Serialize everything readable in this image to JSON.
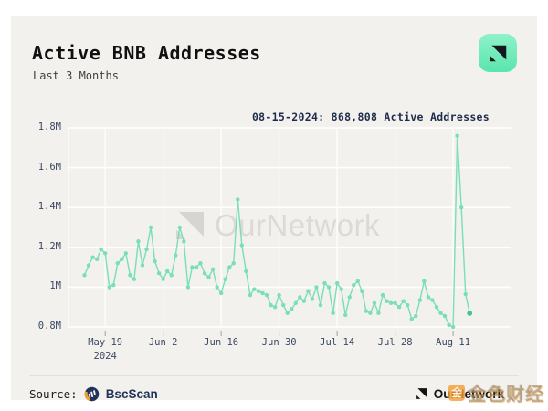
{
  "header": {
    "title": "Active BNB Addresses",
    "subtitle": "Last 3 Months"
  },
  "badge_icon": "ournetwork-logo",
  "watermark_text": "OurNetwork",
  "footer": {
    "source_label": "Source:",
    "source_name": "BscScan",
    "brand": "OurNetwork",
    "overlay_watermark": "金色财经",
    "overlay_icon_glyph": "金"
  },
  "colors": {
    "card_bg": "#f2f1ed",
    "line": "#79dfb5",
    "line_last": "#45c498",
    "grid": "#ffffff",
    "tick": "#9aa1ae",
    "axis_text": "#3c4963",
    "annotation_navy": "#1e2c4c",
    "watermark_gray": "#d9d8d4",
    "badge_teal_from": "#8ff2c8",
    "badge_teal_to": "#5ae5af",
    "bscscan_navy": "#21325b",
    "bscscan_orange": "#f29d35"
  },
  "chart_data": {
    "type": "line",
    "title": "Active BNB Addresses",
    "subtitle": "Last 3 Months",
    "xlabel": "",
    "ylabel": "",
    "unit": "millions of addresses",
    "ylim": [
      0.8,
      1.8
    ],
    "grid": true,
    "legend": "none",
    "y_ticks": [
      {
        "label": "0.8M",
        "value": 0.8
      },
      {
        "label": "1M",
        "value": 1.0
      },
      {
        "label": "1.2M",
        "value": 1.2
      },
      {
        "label": "1.4M",
        "value": 1.4
      },
      {
        "label": "1.6M",
        "value": 1.6
      },
      {
        "label": "1.8M",
        "value": 1.8
      }
    ],
    "x_ticks": [
      {
        "label": "May 19",
        "sublabel": "2024",
        "day": 5
      },
      {
        "label": "Jun 2",
        "day": 19
      },
      {
        "label": "Jun 16",
        "day": 33
      },
      {
        "label": "Jun 30",
        "day": 47
      },
      {
        "label": "Jul 14",
        "day": 61
      },
      {
        "label": "Jul 28",
        "day": 75
      },
      {
        "label": "Aug 11",
        "day": 89
      }
    ],
    "highlight": {
      "date": "08-15-2024",
      "value": 868808,
      "label": "08-15-2024: 868,808 Active Addresses"
    },
    "series": [
      {
        "name": "Active BNB Addresses",
        "dates": [
          "05-14",
          "05-15",
          "05-16",
          "05-17",
          "05-18",
          "05-19",
          "05-20",
          "05-21",
          "05-22",
          "05-23",
          "05-24",
          "05-25",
          "05-26",
          "05-27",
          "05-28",
          "05-29",
          "05-30",
          "05-31",
          "06-01",
          "06-02",
          "06-03",
          "06-04",
          "06-05",
          "06-06",
          "06-07",
          "06-08",
          "06-09",
          "06-10",
          "06-11",
          "06-12",
          "06-13",
          "06-14",
          "06-15",
          "06-16",
          "06-17",
          "06-18",
          "06-19",
          "06-20",
          "06-21",
          "06-22",
          "06-23",
          "06-24",
          "06-25",
          "06-26",
          "06-27",
          "06-28",
          "06-29",
          "06-30",
          "07-01",
          "07-02",
          "07-03",
          "07-04",
          "07-05",
          "07-06",
          "07-07",
          "07-08",
          "07-09",
          "07-10",
          "07-11",
          "07-12",
          "07-13",
          "07-14",
          "07-15",
          "07-16",
          "07-17",
          "07-18",
          "07-19",
          "07-20",
          "07-21",
          "07-22",
          "07-23",
          "07-24",
          "07-25",
          "07-26",
          "07-27",
          "07-28",
          "07-29",
          "07-30",
          "07-31",
          "08-01",
          "08-02",
          "08-03",
          "08-04",
          "08-05",
          "08-06",
          "08-07",
          "08-08",
          "08-09",
          "08-10",
          "08-11",
          "08-12",
          "08-13",
          "08-14",
          "08-15"
        ],
        "values_millions": [
          1.06,
          1.11,
          1.15,
          1.14,
          1.19,
          1.17,
          1.0,
          1.01,
          1.12,
          1.14,
          1.17,
          1.06,
          1.04,
          1.23,
          1.11,
          1.19,
          1.3,
          1.13,
          1.07,
          1.04,
          1.08,
          1.06,
          1.16,
          1.3,
          1.23,
          1.0,
          1.1,
          1.1,
          1.12,
          1.07,
          1.05,
          1.09,
          1.0,
          0.97,
          1.04,
          1.1,
          1.12,
          1.44,
          1.21,
          1.08,
          0.96,
          0.99,
          0.98,
          0.97,
          0.96,
          0.91,
          0.9,
          0.96,
          0.91,
          0.87,
          0.89,
          0.92,
          0.95,
          0.93,
          0.98,
          0.94,
          1.0,
          0.91,
          1.02,
          1.0,
          0.87,
          1.02,
          0.99,
          0.86,
          0.95,
          1.01,
          1.03,
          0.98,
          0.88,
          0.87,
          0.92,
          0.87,
          0.96,
          0.93,
          0.92,
          0.92,
          0.9,
          0.93,
          0.91,
          0.84,
          0.855,
          0.935,
          1.03,
          0.95,
          0.935,
          0.9,
          0.87,
          0.855,
          0.81,
          0.8,
          1.76,
          1.4,
          0.965,
          0.8688
        ]
      }
    ]
  }
}
